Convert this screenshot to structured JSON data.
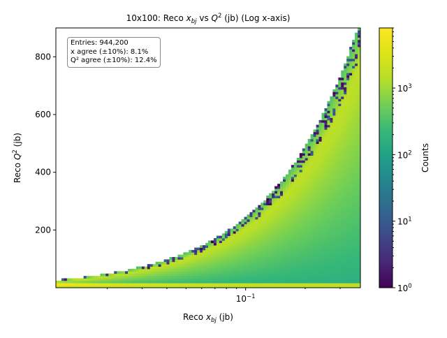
{
  "chart_data": {
    "type": "heatmap",
    "title": "10x100: Reco x_bj vs Q^2 (jb) (Log x-axis)",
    "title_parts": {
      "prefix": "10x100: Reco ",
      "x": "x",
      "xsub": "bj",
      "mid": " vs ",
      "q": "Q",
      "qsup": "2",
      "suffix": " (jb) (Log x-axis)"
    },
    "xlabel": "Reco x_bj (jb)",
    "xlabel_parts": {
      "prefix": "Reco ",
      "x": "x",
      "xsub": "bj",
      "suffix": " (jb)"
    },
    "ylabel": "Reco Q^2 (jb)",
    "ylabel_parts": {
      "prefix": "Reco ",
      "q": "Q",
      "qsup": "2",
      "suffix": " (jb)"
    },
    "x_scale": "log",
    "xlim": [
      0.011,
      0.38
    ],
    "ylim": [
      0,
      900
    ],
    "x_ticks": [
      {
        "value": 0.1,
        "base": "10",
        "exp": "−1"
      }
    ],
    "y_ticks": [
      200,
      400,
      600,
      800
    ],
    "colorbar": {
      "label": "Counts",
      "scale": "log",
      "range": [
        1,
        8000
      ],
      "ticks": [
        {
          "value": 1,
          "base": "10",
          "exp": "0"
        },
        {
          "value": 10,
          "base": "10",
          "exp": "1"
        },
        {
          "value": 100,
          "base": "10",
          "exp": "2"
        },
        {
          "value": 1000,
          "base": "10",
          "exp": "3"
        }
      ],
      "colormap": "viridis"
    },
    "stats": {
      "entries": "Entries: 944,200",
      "x_agree": "x agree (±10%): 8.1%",
      "q2_agree": "Q² agree (±10%): 12.4%"
    },
    "grid": false
  }
}
